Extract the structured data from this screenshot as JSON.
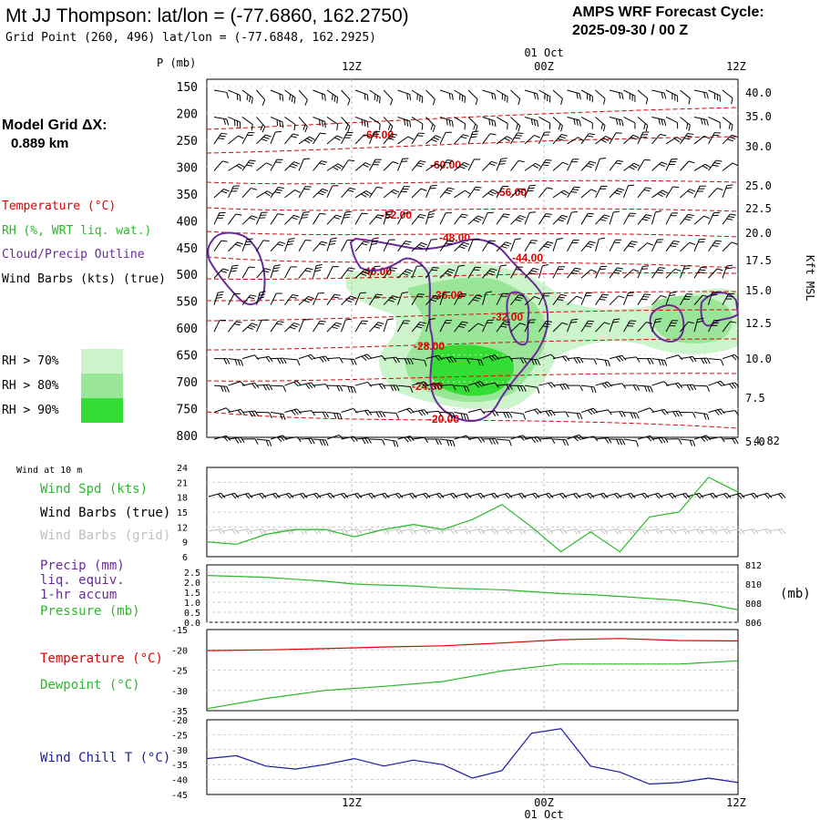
{
  "header": {
    "station_title": "Mt JJ Thompson:  lat/lon = (-77.6860, 162.2750)",
    "grid_point": "Grid Point (260, 496) lat/lon = (-77.6848, 162.2925)",
    "cycle_label": "AMPS WRF Forecast Cycle:",
    "cycle_value": "2025-09-30 / 00  Z"
  },
  "left_legend": {
    "model_grid_label": "Model Grid ΔX:",
    "model_grid_value": "0.889 km",
    "temperature": "Temperature (°C)",
    "rh": "RH (%, WRT liq. wat.)",
    "cloud": "Cloud/Precip Outline",
    "wind": "Wind Barbs (kts) (true)",
    "rh70": "RH > 70%",
    "rh80": "RH > 80%",
    "rh90": "RH > 90%"
  },
  "colors": {
    "temperature": "#e00000",
    "rh": "#2ab82a",
    "cloud": "#6a2a9a",
    "wind_grid": "#c0c0c0",
    "chill": "#1a1aa0",
    "rh70": "#ccf5cc",
    "rh80": "#99e699",
    "rh90": "#33dd33"
  },
  "time_axis": {
    "top_date": "01 Oct",
    "labels": [
      "12Z",
      "00Z",
      "12Z"
    ],
    "bottom_labels": [
      "12Z",
      "00Z"
    ],
    "bottom_date": "01 Oct"
  },
  "sounding": {
    "p_axis_label": "P (mb)",
    "height_axis_label": "Kft MSL",
    "pressure_levels": [
      150,
      200,
      250,
      300,
      350,
      400,
      450,
      500,
      550,
      600,
      650,
      700,
      750,
      800
    ],
    "height_ticks": [
      "40.0",
      "35.0",
      "30.0",
      "25.0",
      "22.5",
      "20.0",
      "17.5",
      "15.0",
      "12.5",
      "10.0",
      "7.5",
      "5.0"
    ],
    "surface_height": "4.82",
    "temperature_labels": [
      "-64.00",
      "-60.00",
      "-56.00",
      "-52.00",
      "-48.00",
      "-44.00",
      "-40.00",
      "-36.00",
      "-32.00",
      "-28.00",
      "-24.00",
      "-20.00"
    ]
  },
  "panels": {
    "wind10m": {
      "header": "Wind at 10 m",
      "labels": [
        "Wind Spd (kts)",
        "Wind Barbs (true)",
        "Wind Barbs (grid)"
      ],
      "yticks": [
        "24",
        "21",
        "18",
        "15",
        "12",
        "9",
        "6"
      ]
    },
    "precip": {
      "labels": [
        "Precip (mm)",
        "liq. equiv.",
        "1-hr accum",
        "Pressure (mb)"
      ],
      "left_ticks": [
        "2.5",
        "2.0",
        "1.5",
        "1.0",
        "0.5",
        "0.0"
      ],
      "right_ticks": [
        "812",
        "810",
        "808",
        "806"
      ],
      "right_unit": "(mb)"
    },
    "temp": {
      "labels": [
        "Temperature (°C)",
        "Dewpoint (°C)"
      ],
      "yticks": [
        "-15",
        "-20",
        "-25",
        "-30",
        "-35"
      ]
    },
    "chill": {
      "labels": [
        "Wind Chill T (°C)"
      ],
      "yticks": [
        "-20",
        "-25",
        "-30",
        "-35",
        "-40",
        "-45"
      ]
    }
  },
  "chart_data": [
    {
      "type": "line",
      "title": "Wind at 10 m",
      "ylabel": "Wind Spd (kts)",
      "ylim": [
        6,
        24
      ],
      "x_hours": [
        0,
        2,
        4,
        6,
        8,
        10,
        12,
        14,
        16,
        18,
        20,
        22,
        24,
        26,
        28,
        30,
        32,
        34,
        36
      ],
      "series": [
        {
          "name": "Wind Spd (kts)",
          "values": [
            9,
            8.5,
            10.5,
            11.5,
            11.5,
            10,
            11.5,
            12.5,
            11.5,
            13.5,
            16.5,
            12,
            7,
            11,
            7,
            14,
            15,
            22,
            19
          ]
        }
      ]
    },
    {
      "type": "line",
      "title": "Pressure",
      "ylabel": "Pressure (mb)",
      "ylim": [
        806,
        812
      ],
      "x_hours": [
        0,
        2,
        4,
        6,
        8,
        10,
        12,
        14,
        16,
        18,
        20,
        22,
        24,
        26,
        28,
        30,
        32,
        34,
        36
      ],
      "series": [
        {
          "name": "Pressure (mb)",
          "values": [
            810.9,
            810.8,
            810.7,
            810.5,
            810.3,
            810.0,
            809.9,
            809.8,
            809.6,
            809.5,
            809.4,
            809.2,
            809.0,
            808.9,
            808.7,
            808.5,
            808.3,
            807.9,
            807.3
          ]
        }
      ]
    },
    {
      "type": "line",
      "title": "Temperature / Dewpoint",
      "ylabel": "°C",
      "ylim": [
        -35,
        -15
      ],
      "x_hours": [
        0,
        4,
        8,
        12,
        16,
        20,
        24,
        28,
        32,
        36
      ],
      "series": [
        {
          "name": "Temperature (°C)",
          "values": [
            -20.2,
            -20.0,
            -19.7,
            -19.3,
            -19.0,
            -18.3,
            -17.5,
            -17.2,
            -17.7,
            -17.8
          ]
        },
        {
          "name": "Dewpoint (°C)",
          "values": [
            -34.5,
            -32.0,
            -30.0,
            -29.0,
            -27.8,
            -25.2,
            -23.5,
            -23.5,
            -23.5,
            -22.7
          ]
        }
      ]
    },
    {
      "type": "line",
      "title": "Wind Chill",
      "ylabel": "Wind Chill T (°C)",
      "ylim": [
        -45,
        -20
      ],
      "x_hours": [
        0,
        2,
        4,
        6,
        8,
        10,
        12,
        14,
        16,
        18,
        20,
        22,
        24,
        26,
        28,
        30,
        32,
        34,
        36
      ],
      "series": [
        {
          "name": "Wind Chill T (°C)",
          "values": [
            -33,
            -32,
            -35.5,
            -36.5,
            -35,
            -33,
            -35.5,
            -33.5,
            -35,
            -39.5,
            -37,
            -24.5,
            -23,
            -35.5,
            -37.5,
            -41.5,
            -41,
            -39.5,
            -41
          ]
        }
      ]
    }
  ]
}
